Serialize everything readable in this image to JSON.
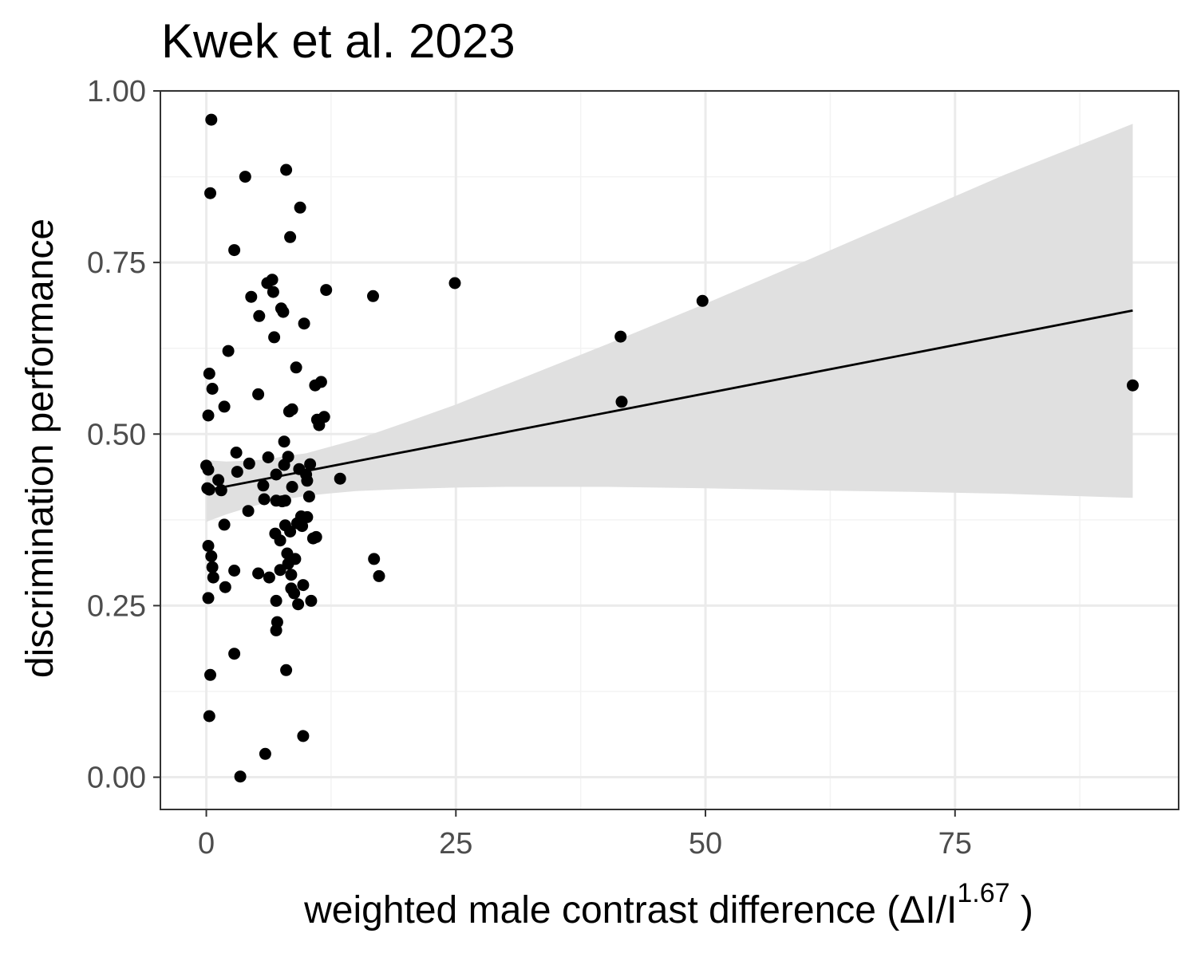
{
  "chart_data": {
    "type": "scatter",
    "title": "Kwek et al. 2023",
    "xlabel": {
      "main": "weighted  male contrast  difference (ΔI/I",
      "superscript": "1.67",
      "close": " )"
    },
    "ylabel": "discrimination performance",
    "xlim": [
      -4.6,
      97.4
    ],
    "ylim": [
      -0.047,
      1.0
    ],
    "x_ticks": [
      0,
      25,
      50,
      75
    ],
    "x_tick_labels": [
      "0",
      "25",
      "50",
      "75"
    ],
    "y_ticks": [
      0.0,
      0.25,
      0.5,
      0.75,
      1.0
    ],
    "y_tick_labels": [
      "0.00",
      "0.25",
      "0.50",
      "0.75",
      "1.00"
    ],
    "grid": true,
    "colors": {
      "points": "#000000",
      "fit_line": "#000000",
      "confidence_band": "#e0e0e0",
      "grid_major": "#ebebeb",
      "grid_minor": "#f3f3f3",
      "panel_border": "#333333",
      "tick_label": "#4d4d4d"
    },
    "fit": {
      "method": "linear",
      "x": [
        0,
        92.8
      ],
      "y": [
        0.418,
        0.68
      ],
      "band": {
        "x": [
          0,
          2,
          4,
          6,
          8,
          10,
          12,
          15,
          20,
          25,
          30,
          40,
          50,
          60,
          70,
          80,
          92.8
        ],
        "upper": [
          0.462,
          0.46,
          0.461,
          0.463,
          0.468,
          0.472,
          0.48,
          0.492,
          0.517,
          0.543,
          0.572,
          0.63,
          0.69,
          0.752,
          0.815,
          0.878,
          0.952
        ],
        "lower": [
          0.372,
          0.383,
          0.392,
          0.4,
          0.405,
          0.41,
          0.413,
          0.417,
          0.42,
          0.422,
          0.423,
          0.423,
          0.421,
          0.418,
          0.416,
          0.413,
          0.407
        ]
      }
    },
    "points": [
      [
        0.5,
        0.958
      ],
      [
        0.4,
        0.851
      ],
      [
        0.3,
        0.588
      ],
      [
        0.6,
        0.566
      ],
      [
        0.2,
        0.527
      ],
      [
        0.0,
        0.454
      ],
      [
        0.2,
        0.448
      ],
      [
        0.1,
        0.421
      ],
      [
        0.3,
        0.419
      ],
      [
        0.2,
        0.337
      ],
      [
        0.5,
        0.322
      ],
      [
        0.6,
        0.306
      ],
      [
        0.7,
        0.291
      ],
      [
        0.2,
        0.261
      ],
      [
        0.4,
        0.149
      ],
      [
        0.3,
        0.089
      ],
      [
        1.2,
        0.433
      ],
      [
        1.5,
        0.418
      ],
      [
        1.8,
        0.368
      ],
      [
        1.9,
        0.277
      ],
      [
        1.8,
        0.54
      ],
      [
        2.2,
        0.621
      ],
      [
        2.8,
        0.768
      ],
      [
        3.0,
        0.473
      ],
      [
        3.1,
        0.445
      ],
      [
        2.8,
        0.301
      ],
      [
        2.8,
        0.18
      ],
      [
        3.4,
        0.001
      ],
      [
        3.9,
        0.875
      ],
      [
        4.3,
        0.457
      ],
      [
        4.2,
        0.388
      ],
      [
        4.5,
        0.7
      ],
      [
        5.2,
        0.558
      ],
      [
        5.3,
        0.672
      ],
      [
        5.2,
        0.297
      ],
      [
        5.7,
        0.425
      ],
      [
        5.8,
        0.405
      ],
      [
        5.9,
        0.034
      ],
      [
        6.1,
        0.72
      ],
      [
        6.2,
        0.466
      ],
      [
        6.3,
        0.291
      ],
      [
        6.6,
        0.725
      ],
      [
        6.7,
        0.707
      ],
      [
        6.8,
        0.641
      ],
      [
        6.9,
        0.355
      ],
      [
        7.0,
        0.441
      ],
      [
        7.0,
        0.403
      ],
      [
        7.0,
        0.257
      ],
      [
        7.1,
        0.226
      ],
      [
        7.0,
        0.214
      ],
      [
        7.4,
        0.345
      ],
      [
        7.4,
        0.302
      ],
      [
        7.5,
        0.683
      ],
      [
        7.6,
        0.402
      ],
      [
        7.7,
        0.678
      ],
      [
        7.8,
        0.489
      ],
      [
        7.8,
        0.455
      ],
      [
        7.9,
        0.367
      ],
      [
        7.9,
        0.403
      ],
      [
        8.0,
        0.156
      ],
      [
        8.0,
        0.885
      ],
      [
        8.1,
        0.326
      ],
      [
        8.2,
        0.467
      ],
      [
        8.2,
        0.311
      ],
      [
        8.3,
        0.533
      ],
      [
        8.4,
        0.787
      ],
      [
        8.4,
        0.358
      ],
      [
        8.5,
        0.295
      ],
      [
        8.5,
        0.275
      ],
      [
        8.6,
        0.536
      ],
      [
        8.6,
        0.423
      ],
      [
        8.8,
        0.268
      ],
      [
        8.9,
        0.318
      ],
      [
        9.0,
        0.597
      ],
      [
        9.1,
        0.37
      ],
      [
        9.2,
        0.252
      ],
      [
        9.3,
        0.449
      ],
      [
        9.4,
        0.83
      ],
      [
        9.5,
        0.38
      ],
      [
        9.6,
        0.366
      ],
      [
        9.7,
        0.28
      ],
      [
        9.8,
        0.661
      ],
      [
        9.7,
        0.06
      ],
      [
        10.0,
        0.441
      ],
      [
        10.1,
        0.432
      ],
      [
        10.1,
        0.379
      ],
      [
        10.3,
        0.409
      ],
      [
        10.4,
        0.456
      ],
      [
        10.5,
        0.257
      ],
      [
        10.7,
        0.348
      ],
      [
        10.9,
        0.571
      ],
      [
        11.0,
        0.35
      ],
      [
        11.1,
        0.521
      ],
      [
        11.3,
        0.513
      ],
      [
        11.5,
        0.576
      ],
      [
        11.8,
        0.525
      ],
      [
        12.0,
        0.71
      ],
      [
        13.4,
        0.435
      ],
      [
        16.7,
        0.701
      ],
      [
        16.8,
        0.318
      ],
      [
        17.3,
        0.293
      ],
      [
        24.9,
        0.72
      ],
      [
        41.5,
        0.642
      ],
      [
        41.6,
        0.547
      ],
      [
        49.7,
        0.694
      ],
      [
        92.8,
        0.571
      ]
    ]
  }
}
